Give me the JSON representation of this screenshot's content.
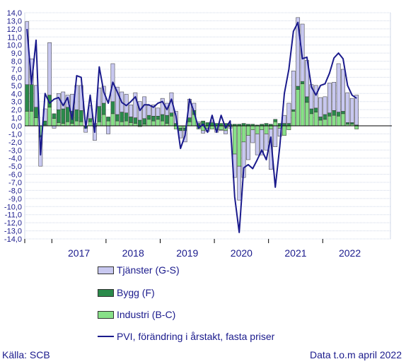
{
  "chart_data": {
    "type": "bar",
    "stacked": true,
    "x_start": "2016-07",
    "x_end": "2022-04",
    "ylim": [
      -14.0,
      14.0
    ],
    "ytick_step": 1.0,
    "year_labels": [
      "2017",
      "2018",
      "2019",
      "2020",
      "2021",
      "2022"
    ],
    "grid": true,
    "series": [
      {
        "name": "Tjänster (G-S)",
        "color": "#c8c8f0",
        "values": [
          7.8,
          3.2,
          2.7,
          -3.6,
          1.5,
          6.5,
          -0.3,
          2.0,
          2.1,
          1.5,
          2.1,
          3.0,
          3.1,
          -0.5,
          1.6,
          -1.7,
          2.3,
          2.1,
          -1.0,
          4.7,
          3.4,
          2.5,
          2.3,
          1.5,
          3.1,
          2.3,
          2.7,
          1.2,
          1.4,
          1.0,
          2.0,
          1.5,
          2.5,
          1.5,
          -0.9,
          -1.4,
          2.3,
          0.9,
          0.2,
          -0.3,
          -0.4,
          0.2,
          -0.3,
          -0.1,
          -0.4,
          -0.2,
          -2.9,
          -4.2,
          -4.4,
          -3.0,
          -1.6,
          -2.6,
          -3.1,
          -2.0,
          -5.0,
          -2.6,
          -1.0,
          1.0,
          2.5,
          4.8,
          8.5,
          7.1,
          4.5,
          3.0,
          2.8,
          2.4,
          2.2,
          3.7,
          3.5,
          6.0,
          5.2,
          3.7,
          3.0,
          3.7
        ]
      },
      {
        "name": "Bygg (F)",
        "color": "#2a8a4a",
        "values": [
          3.3,
          3.3,
          1.3,
          -0.2,
          0.5,
          1.5,
          0.6,
          1.6,
          1.8,
          1.8,
          1.5,
          1.4,
          1.4,
          -0.2,
          0.4,
          -0.1,
          1.9,
          1.4,
          0.5,
          1.5,
          0.8,
          1.2,
          1.0,
          0.7,
          0.7,
          0.7,
          0.7,
          0.5,
          0.6,
          0.4,
          0.8,
          1.0,
          0.4,
          0.3,
          -0.3,
          -0.3,
          0.5,
          0.5,
          0.3,
          0.6,
          0.4,
          0.4,
          0.3,
          0.3,
          0.3,
          0.2,
          0.2,
          0.2,
          0.3,
          0.2,
          0.2,
          0.1,
          0.2,
          0.3,
          0.2,
          0.3,
          0.3,
          0.3,
          0.3,
          0.2,
          0.4,
          0.3,
          0.7,
          0.6,
          0.5,
          0.4,
          0.6,
          0.4,
          0.6,
          0.5,
          0.3,
          0.2,
          0.2,
          0.1
        ]
      },
      {
        "name": "Industri (B-C)",
        "color": "#88e088",
        "values": [
          1.8,
          1.8,
          1.0,
          -1.2,
          0.1,
          2.3,
          0.9,
          0.4,
          0.3,
          0.5,
          0.3,
          0.6,
          0.5,
          -0.1,
          0.5,
          0.3,
          0.5,
          1.4,
          0.6,
          1.5,
          0.6,
          0.5,
          0.6,
          0.4,
          0.3,
          -0.1,
          0.2,
          0.8,
          0.6,
          0.8,
          0.6,
          0.3,
          1.2,
          -0.4,
          -0.3,
          -0.3,
          0.5,
          1.4,
          -0.4,
          -0.6,
          -0.3,
          -0.4,
          -0.5,
          -0.5,
          -0.6,
          -0.1,
          -3.5,
          -5.0,
          -2.0,
          -1.2,
          -0.5,
          -1.0,
          -0.5,
          -1.0,
          -0.4,
          0.5,
          -0.3,
          -1.2,
          -0.5,
          1.8,
          4.5,
          5.2,
          2.9,
          1.5,
          1.7,
          0.7,
          0.8,
          1.2,
          1.3,
          1.2,
          1.5,
          0.2,
          0.2,
          -0.4
        ]
      }
    ],
    "line": {
      "name": "PVI, förändring i årstakt, fasta priser",
      "color": "#1a1a8c",
      "values": [
        12.0,
        5.2,
        10.6,
        -3.6,
        4.0,
        2.8,
        3.3,
        3.5,
        2.5,
        3.5,
        0.8,
        6.2,
        6.0,
        -0.3,
        3.8,
        -0.8,
        7.3,
        4.2,
        2.8,
        5.4,
        4.2,
        2.9,
        2.5,
        3.0,
        3.6,
        1.9,
        2.6,
        2.6,
        2.3,
        2.8,
        3.0,
        2.0,
        3.3,
        1.2,
        -2.8,
        -1.2,
        3.3,
        1.7,
        -0.3,
        0.2,
        -0.8,
        1.3,
        -0.8,
        1.3,
        -0.3,
        0.6,
        -8.8,
        -13.2,
        -5.2,
        -4.8,
        -5.3,
        -4.2,
        -3.0,
        -4.2,
        -1.4,
        -7.6,
        -2.5,
        4.0,
        7.0,
        11.7,
        12.8,
        8.3,
        8.5,
        4.8,
        3.8,
        5.0,
        5.2,
        6.5,
        8.4,
        9.0,
        8.3,
        5.0,
        3.8,
        3.4
      ]
    }
  },
  "legend": {
    "items": [
      {
        "label": "Tjänster (G-S)",
        "kind": "swatch",
        "color": "#c8c8f0"
      },
      {
        "label": "Bygg (F)",
        "kind": "swatch",
        "color": "#2a8a4a"
      },
      {
        "label": "Industri (B-C)",
        "kind": "swatch",
        "color": "#88e088"
      },
      {
        "label": "PVI, förändring i årstakt, fasta priser",
        "kind": "line",
        "color": "#1a1a8c"
      }
    ]
  },
  "footer": {
    "source": "Källa: SCB",
    "data_through": "Data t.o.m april 2022"
  }
}
